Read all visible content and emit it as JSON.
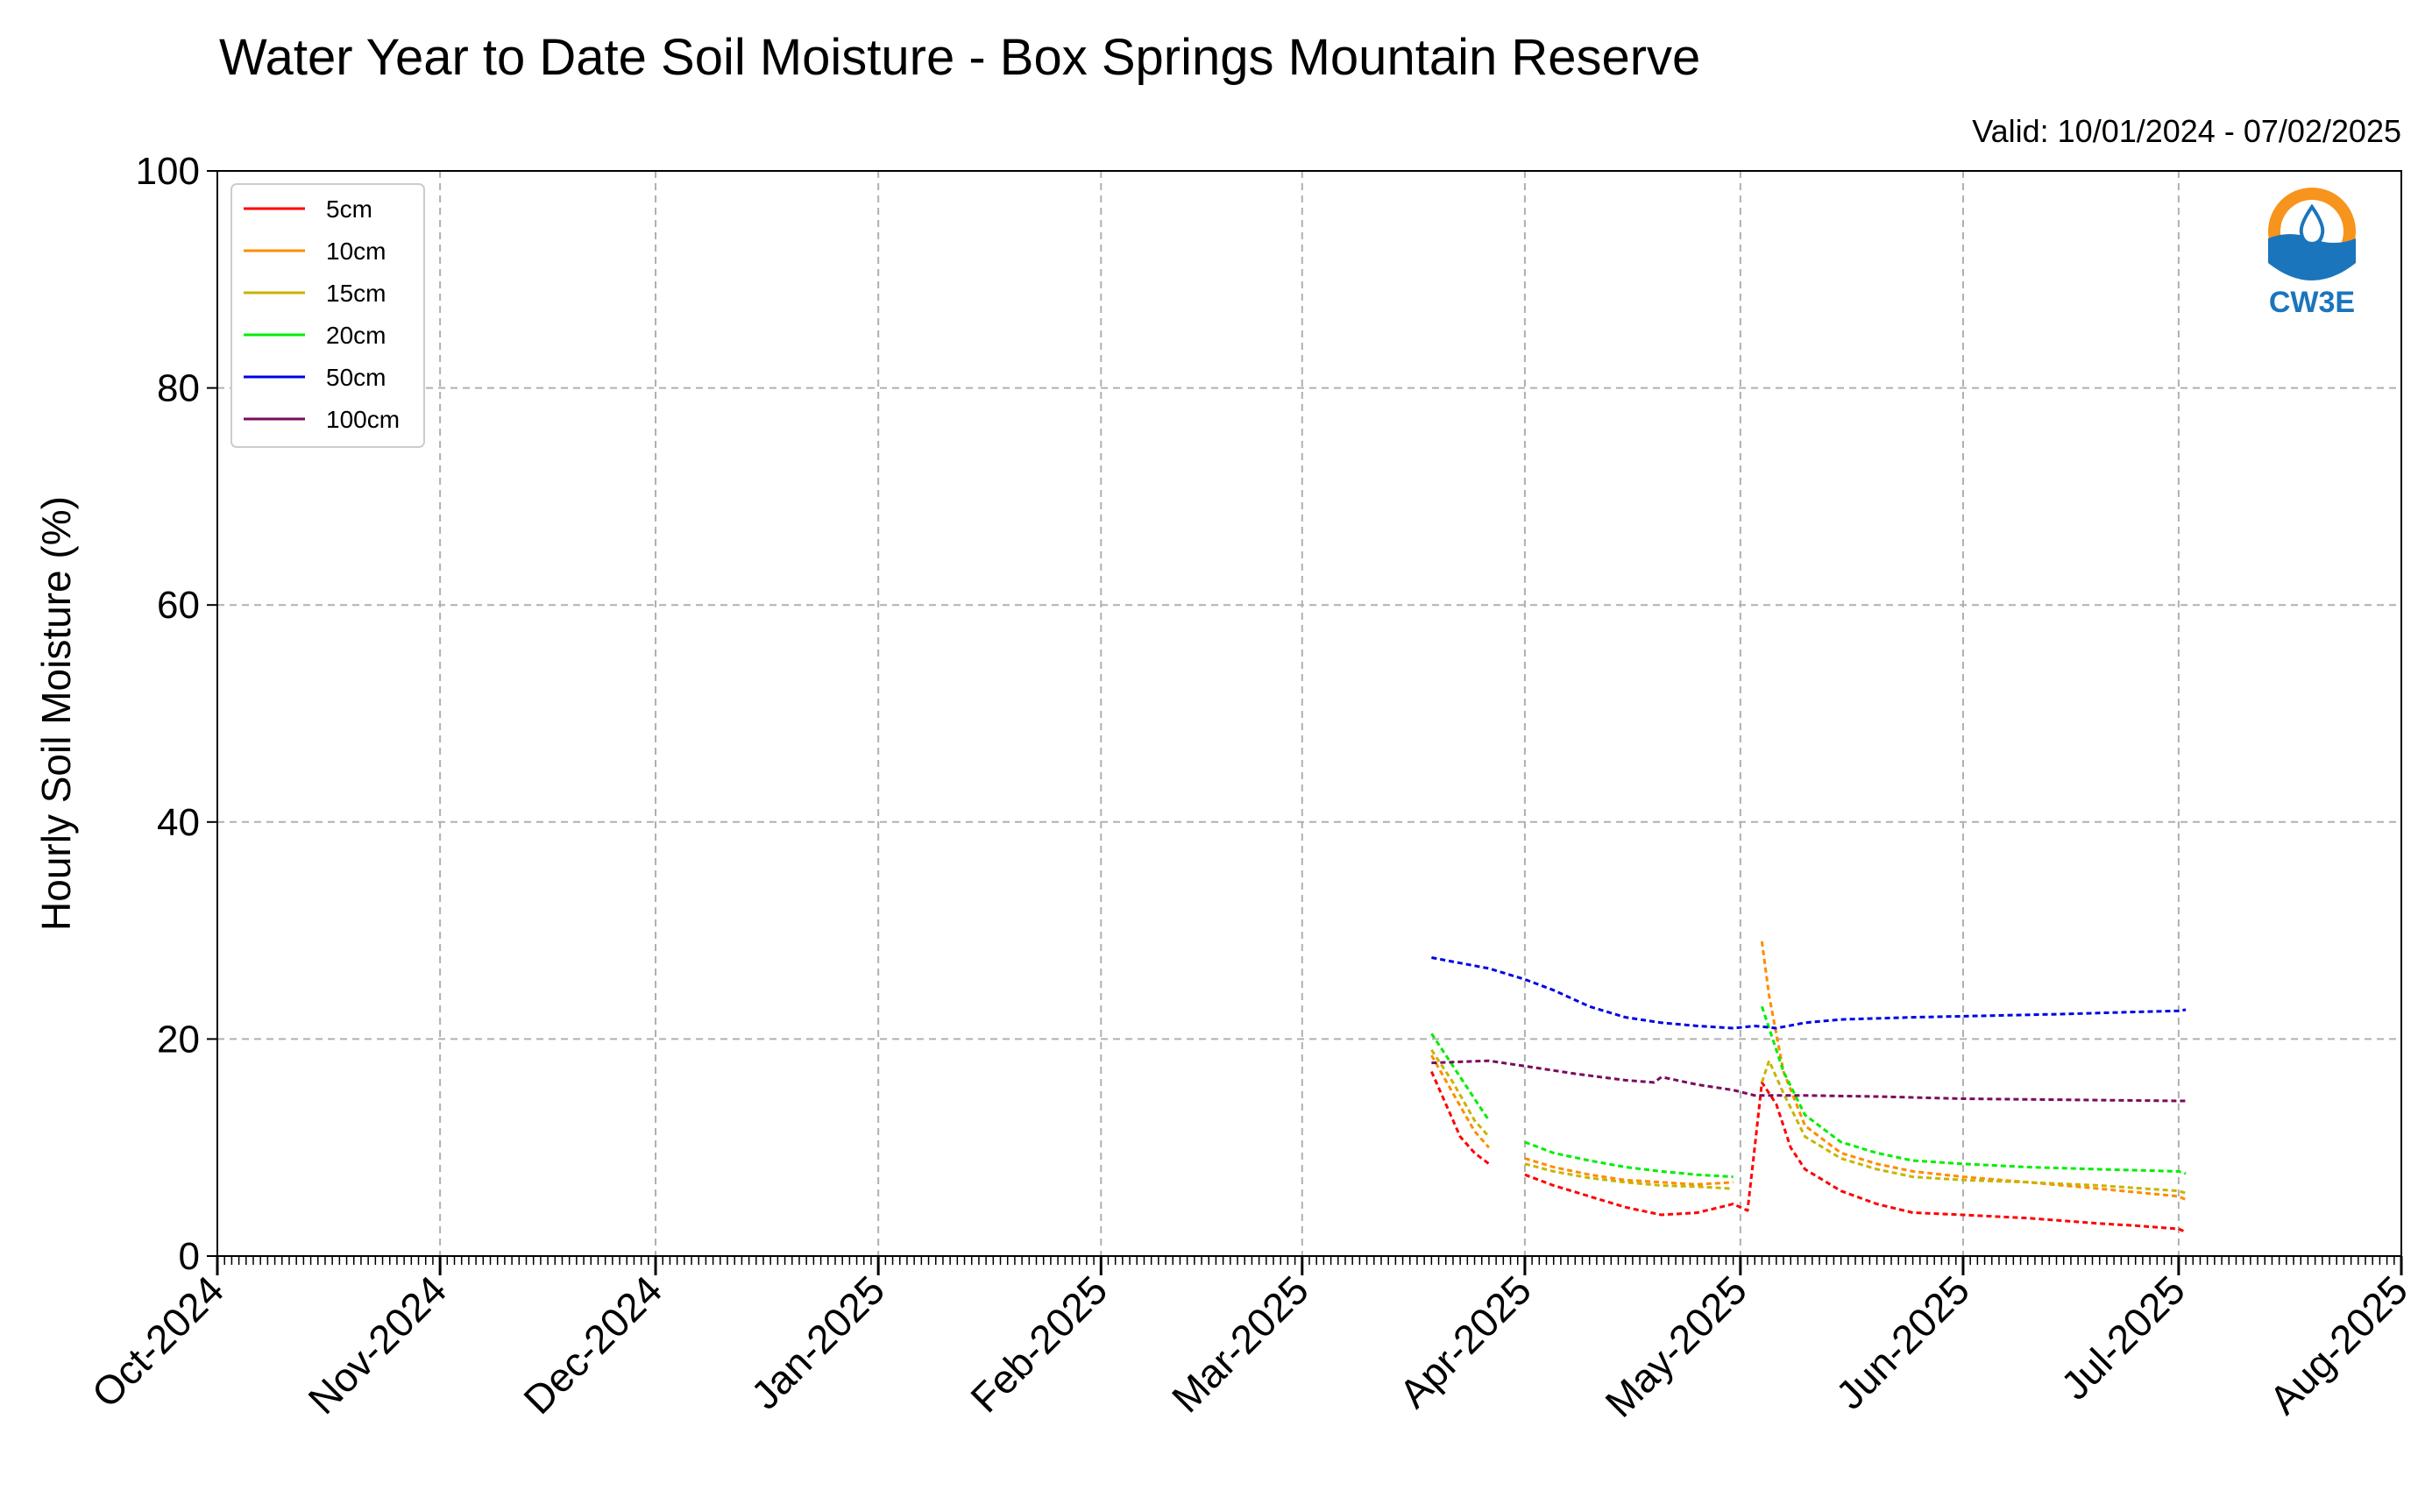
{
  "chart_data": {
    "type": "line",
    "title": "Water Year to Date Soil Moisture - Box Springs Mountain Reserve",
    "subtitle": "Valid: 10/01/2024 - 07/02/2025",
    "ylabel": "Hourly Soil Moisture (%)",
    "xlabel": "",
    "ylim": [
      0,
      100
    ],
    "xlim": [
      "2024-10-01",
      "2025-08-01"
    ],
    "yticks": [
      "0",
      "20",
      "40",
      "60",
      "80",
      "100"
    ],
    "xticks": [
      {
        "date": "2024-10-01",
        "label": "Oct-2024"
      },
      {
        "date": "2024-11-01",
        "label": "Nov-2024"
      },
      {
        "date": "2024-12-01",
        "label": "Dec-2024"
      },
      {
        "date": "2025-01-01",
        "label": "Jan-2025"
      },
      {
        "date": "2025-02-01",
        "label": "Feb-2025"
      },
      {
        "date": "2025-03-01",
        "label": "Mar-2025"
      },
      {
        "date": "2025-04-01",
        "label": "Apr-2025"
      },
      {
        "date": "2025-05-01",
        "label": "May-2025"
      },
      {
        "date": "2025-06-01",
        "label": "Jun-2025"
      },
      {
        "date": "2025-07-01",
        "label": "Jul-2025"
      },
      {
        "date": "2025-08-01",
        "label": "Aug-2025"
      }
    ],
    "grid": true,
    "legend_position": "top-left",
    "logo_text": "CW3E",
    "series": [
      {
        "name": "5cm",
        "color": "#ff0000",
        "points": [
          [
            "2025-03-19",
            17
          ],
          [
            "2025-03-21",
            14
          ],
          [
            "2025-03-23",
            11
          ],
          [
            "2025-03-25",
            9.5
          ],
          [
            "2025-03-27",
            8.5
          ],
          [
            "2025-03-30",
            null
          ],
          [
            "2025-04-01",
            7.5
          ],
          [
            "2025-04-05",
            6.5
          ],
          [
            "2025-04-10",
            5.5
          ],
          [
            "2025-04-15",
            4.5
          ],
          [
            "2025-04-20",
            3.8
          ],
          [
            "2025-04-25",
            4
          ],
          [
            "2025-04-30",
            4.8
          ],
          [
            "2025-05-02",
            4.2
          ],
          [
            "2025-05-03",
            10
          ],
          [
            "2025-05-04",
            16
          ],
          [
            "2025-05-06",
            14
          ],
          [
            "2025-05-08",
            10
          ],
          [
            "2025-05-10",
            8
          ],
          [
            "2025-05-15",
            6
          ],
          [
            "2025-05-20",
            4.8
          ],
          [
            "2025-05-25",
            4
          ],
          [
            "2025-06-01",
            3.8
          ],
          [
            "2025-06-10",
            3.5
          ],
          [
            "2025-06-20",
            3
          ],
          [
            "2025-06-25",
            2.8
          ],
          [
            "2025-07-01",
            2.5
          ],
          [
            "2025-07-02",
            2.2
          ]
        ]
      },
      {
        "name": "10cm",
        "color": "#ff8c00",
        "points": [
          [
            "2025-03-19",
            18.5
          ],
          [
            "2025-03-22",
            15
          ],
          [
            "2025-03-25",
            11.5
          ],
          [
            "2025-03-27",
            10
          ],
          [
            "2025-03-30",
            null
          ],
          [
            "2025-04-01",
            9
          ],
          [
            "2025-04-05",
            8.2
          ],
          [
            "2025-04-10",
            7.5
          ],
          [
            "2025-04-15",
            7
          ],
          [
            "2025-04-20",
            6.8
          ],
          [
            "2025-04-25",
            6.6
          ],
          [
            "2025-04-30",
            6.8
          ],
          [
            "2025-05-03",
            null
          ],
          [
            "2025-05-04",
            29
          ],
          [
            "2025-05-05",
            24
          ],
          [
            "2025-05-07",
            17
          ],
          [
            "2025-05-10",
            12
          ],
          [
            "2025-05-15",
            9.5
          ],
          [
            "2025-05-20",
            8.5
          ],
          [
            "2025-05-25",
            7.8
          ],
          [
            "2025-06-01",
            7.3
          ],
          [
            "2025-06-10",
            6.8
          ],
          [
            "2025-06-20",
            6.2
          ],
          [
            "2025-07-01",
            5.5
          ],
          [
            "2025-07-02",
            5.2
          ]
        ]
      },
      {
        "name": "15cm",
        "color": "#c8b400",
        "points": [
          [
            "2025-03-19",
            19
          ],
          [
            "2025-03-22",
            16
          ],
          [
            "2025-03-25",
            12.5
          ],
          [
            "2025-03-27",
            11
          ],
          [
            "2025-03-30",
            null
          ],
          [
            "2025-04-01",
            8.5
          ],
          [
            "2025-04-05",
            7.8
          ],
          [
            "2025-04-10",
            7.2
          ],
          [
            "2025-04-15",
            6.8
          ],
          [
            "2025-04-20",
            6.5
          ],
          [
            "2025-04-25",
            6.4
          ],
          [
            "2025-04-30",
            6.2
          ],
          [
            "2025-05-03",
            null
          ],
          [
            "2025-05-04",
            16
          ],
          [
            "2025-05-05",
            18
          ],
          [
            "2025-05-07",
            15
          ],
          [
            "2025-05-10",
            11
          ],
          [
            "2025-05-15",
            9
          ],
          [
            "2025-05-20",
            8
          ],
          [
            "2025-05-25",
            7.3
          ],
          [
            "2025-06-01",
            7
          ],
          [
            "2025-06-10",
            6.8
          ],
          [
            "2025-06-20",
            6.5
          ],
          [
            "2025-07-01",
            6
          ],
          [
            "2025-07-02",
            5.8
          ]
        ]
      },
      {
        "name": "20cm",
        "color": "#00ee00",
        "points": [
          [
            "2025-03-19",
            20.5
          ],
          [
            "2025-03-21",
            18.5
          ],
          [
            "2025-03-24",
            15.5
          ],
          [
            "2025-03-26",
            13.5
          ],
          [
            "2025-03-27",
            12.5
          ],
          [
            "2025-03-30",
            null
          ],
          [
            "2025-04-01",
            10.5
          ],
          [
            "2025-04-05",
            9.5
          ],
          [
            "2025-04-10",
            8.8
          ],
          [
            "2025-04-15",
            8.2
          ],
          [
            "2025-04-20",
            7.8
          ],
          [
            "2025-04-25",
            7.5
          ],
          [
            "2025-04-30",
            7.3
          ],
          [
            "2025-05-03",
            null
          ],
          [
            "2025-05-04",
            23
          ],
          [
            "2025-05-05",
            21
          ],
          [
            "2025-05-07",
            17
          ],
          [
            "2025-05-10",
            13
          ],
          [
            "2025-05-15",
            10.5
          ],
          [
            "2025-05-20",
            9.5
          ],
          [
            "2025-05-25",
            8.8
          ],
          [
            "2025-06-01",
            8.5
          ],
          [
            "2025-06-10",
            8.2
          ],
          [
            "2025-06-20",
            8
          ],
          [
            "2025-07-01",
            7.8
          ],
          [
            "2025-07-02",
            7.6
          ]
        ]
      },
      {
        "name": "50cm",
        "color": "#0000e6",
        "points": [
          [
            "2025-03-19",
            27.5
          ],
          [
            "2025-03-23",
            27
          ],
          [
            "2025-03-27",
            26.5
          ],
          [
            "2025-04-01",
            25.5
          ],
          [
            "2025-04-05",
            24.5
          ],
          [
            "2025-04-10",
            23
          ],
          [
            "2025-04-15",
            22
          ],
          [
            "2025-04-20",
            21.5
          ],
          [
            "2025-04-25",
            21.2
          ],
          [
            "2025-04-30",
            21
          ],
          [
            "2025-05-03",
            21.2
          ],
          [
            "2025-05-06",
            21
          ],
          [
            "2025-05-10",
            21.5
          ],
          [
            "2025-05-15",
            21.8
          ],
          [
            "2025-05-25",
            22
          ],
          [
            "2025-06-01",
            22.1
          ],
          [
            "2025-06-15",
            22.3
          ],
          [
            "2025-06-25",
            22.5
          ],
          [
            "2025-07-01",
            22.6
          ],
          [
            "2025-07-02",
            22.7
          ]
        ]
      },
      {
        "name": "100cm",
        "color": "#7a0a5c",
        "points": [
          [
            "2025-03-19",
            17.8
          ],
          [
            "2025-03-27",
            18
          ],
          [
            "2025-04-01",
            17.5
          ],
          [
            "2025-04-08",
            16.8
          ],
          [
            "2025-04-15",
            16.2
          ],
          [
            "2025-04-19",
            16
          ],
          [
            "2025-04-20",
            16.5
          ],
          [
            "2025-04-25",
            15.8
          ],
          [
            "2025-04-30",
            15.3
          ],
          [
            "2025-05-03",
            14.8
          ],
          [
            "2025-05-10",
            14.8
          ],
          [
            "2025-05-20",
            14.7
          ],
          [
            "2025-06-01",
            14.5
          ],
          [
            "2025-06-15",
            14.4
          ],
          [
            "2025-07-01",
            14.3
          ],
          [
            "2025-07-02",
            14.3
          ]
        ]
      }
    ]
  }
}
